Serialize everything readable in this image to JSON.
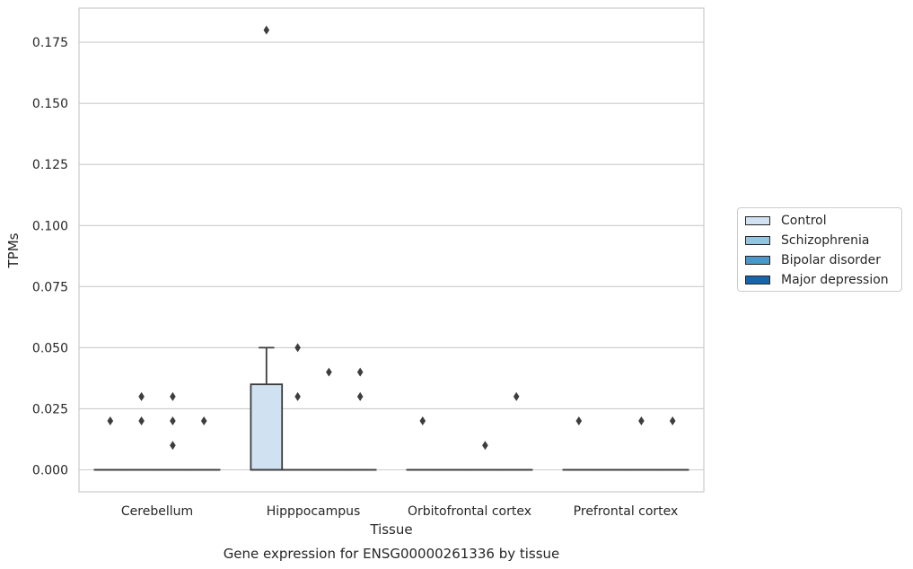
{
  "chart_data": {
    "type": "boxplot",
    "title": "Gene expression for ENSG00000261336 by tissue",
    "xlabel": "Tissue",
    "ylabel": "TPMs",
    "ylim": [
      -0.009,
      0.189
    ],
    "yticks": [
      "0.000",
      "0.025",
      "0.050",
      "0.075",
      "0.100",
      "0.125",
      "0.150",
      "0.175"
    ],
    "ytick_values": [
      0,
      0.025,
      0.05,
      0.075,
      0.1,
      0.125,
      0.15,
      0.175
    ],
    "categories": [
      "Cerebellum",
      "Hipppocampus",
      "Orbitofrontal cortex",
      "Prefrontal cortex"
    ],
    "grid": "horizontal",
    "legend_position": "right",
    "series": [
      {
        "name": "Control",
        "color": "#d0e1f2",
        "boxes": [
          {
            "q1": 0,
            "median": 0,
            "q3": 0,
            "whislo": 0,
            "whishi": 0,
            "fliers": [
              0.02
            ]
          },
          {
            "q1": 0,
            "median": 0,
            "q3": 0.035,
            "whislo": 0,
            "whishi": 0.05,
            "fliers": [
              0.18
            ]
          },
          {
            "q1": 0,
            "median": 0,
            "q3": 0,
            "whislo": 0,
            "whishi": 0,
            "fliers": [
              0.02
            ]
          },
          {
            "q1": 0,
            "median": 0,
            "q3": 0,
            "whislo": 0,
            "whishi": 0,
            "fliers": [
              0.02
            ]
          }
        ]
      },
      {
        "name": "Schizophrenia",
        "color": "#94c4df",
        "boxes": [
          {
            "q1": 0,
            "median": 0,
            "q3": 0,
            "whislo": 0,
            "whishi": 0,
            "fliers": [
              0.02,
              0.03
            ]
          },
          {
            "q1": 0,
            "median": 0,
            "q3": 0,
            "whislo": 0,
            "whishi": 0,
            "fliers": [
              0.05,
              0.03
            ]
          },
          {
            "q1": 0,
            "median": 0,
            "q3": 0,
            "whislo": 0,
            "whishi": 0,
            "fliers": []
          },
          {
            "q1": 0,
            "median": 0,
            "q3": 0,
            "whislo": 0,
            "whishi": 0,
            "fliers": []
          }
        ]
      },
      {
        "name": "Bipolar disorder",
        "color": "#4a98c9",
        "boxes": [
          {
            "q1": 0,
            "median": 0,
            "q3": 0,
            "whislo": 0,
            "whishi": 0,
            "fliers": [
              0.03,
              0.02,
              0.01
            ]
          },
          {
            "q1": 0,
            "median": 0,
            "q3": 0,
            "whislo": 0,
            "whishi": 0,
            "fliers": [
              0.04
            ]
          },
          {
            "q1": 0,
            "median": 0,
            "q3": 0,
            "whislo": 0,
            "whishi": 0,
            "fliers": [
              0.01
            ]
          },
          {
            "q1": 0,
            "median": 0,
            "q3": 0,
            "whislo": 0,
            "whishi": 0,
            "fliers": [
              0.02
            ]
          }
        ]
      },
      {
        "name": "Major depression",
        "color": "#1764ab",
        "boxes": [
          {
            "q1": 0,
            "median": 0,
            "q3": 0,
            "whislo": 0,
            "whishi": 0,
            "fliers": [
              0.02
            ]
          },
          {
            "q1": 0,
            "median": 0,
            "q3": 0,
            "whislo": 0,
            "whishi": 0,
            "fliers": [
              0.04,
              0.03
            ]
          },
          {
            "q1": 0,
            "median": 0,
            "q3": 0,
            "whislo": 0,
            "whishi": 0,
            "fliers": [
              0.03
            ]
          },
          {
            "q1": 0,
            "median": 0,
            "q3": 0,
            "whislo": 0,
            "whishi": 0,
            "fliers": [
              0.02
            ]
          }
        ]
      }
    ]
  }
}
